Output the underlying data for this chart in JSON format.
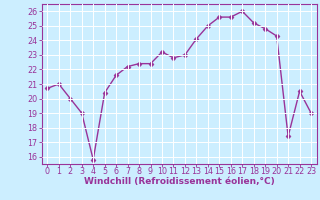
{
  "x": [
    0,
    1,
    2,
    3,
    4,
    5,
    6,
    7,
    8,
    9,
    10,
    11,
    12,
    13,
    14,
    15,
    16,
    17,
    18,
    19,
    20,
    21,
    22,
    23
  ],
  "y": [
    20.7,
    21.0,
    20.0,
    19.0,
    15.8,
    20.4,
    21.6,
    22.2,
    22.4,
    22.4,
    23.2,
    22.8,
    23.0,
    24.1,
    25.0,
    25.6,
    25.6,
    26.0,
    25.2,
    24.8,
    24.3,
    17.4,
    20.5,
    19.0
  ],
  "line_color": "#993399",
  "marker": "D",
  "markersize": 2.5,
  "linewidth": 1.0,
  "xlabel": "Windchill (Refroidissement éolien,°C)",
  "xlabel_fontsize": 6.5,
  "background_color": "#cceeff",
  "grid_color": "#ffffff",
  "ylim": [
    15.5,
    26.5
  ],
  "xlim": [
    -0.5,
    23.5
  ],
  "yticks": [
    16,
    17,
    18,
    19,
    20,
    21,
    22,
    23,
    24,
    25,
    26
  ],
  "xticks": [
    0,
    1,
    2,
    3,
    4,
    5,
    6,
    7,
    8,
    9,
    10,
    11,
    12,
    13,
    14,
    15,
    16,
    17,
    18,
    19,
    20,
    21,
    22,
    23
  ],
  "tick_fontsize": 5.8,
  "tick_color": "#993399",
  "label_color": "#993399",
  "spine_color": "#993399"
}
